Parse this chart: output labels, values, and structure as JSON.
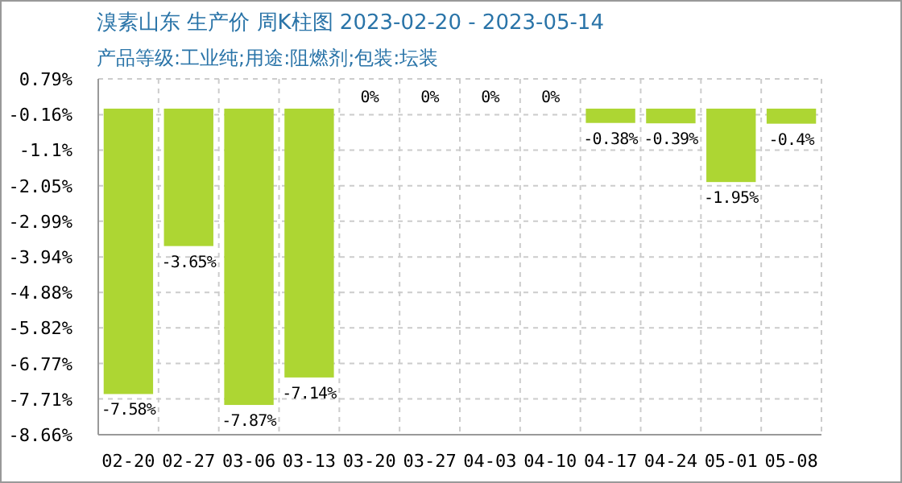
{
  "chart_data": {
    "type": "bar",
    "title": "溴素山东 生产价 周K柱图 2023-02-20 - 2023-05-14",
    "subtitle": "产品等级:工业纯;用途:阻燃剂;包装:坛装",
    "categories": [
      "02-20",
      "02-27",
      "03-06",
      "03-13",
      "03-20",
      "03-27",
      "04-03",
      "04-10",
      "04-17",
      "04-24",
      "05-01",
      "05-08"
    ],
    "values": [
      -7.58,
      -3.65,
      -7.87,
      -7.14,
      0,
      0,
      0,
      0,
      -0.38,
      -0.39,
      -1.95,
      -0.4
    ],
    "color": "#add633",
    "ylim": [
      -8.66,
      0.79
    ],
    "yticks": [
      {
        "value": 0.79,
        "label": "0.79%"
      },
      {
        "value": -0.16,
        "label": "-0.16%"
      },
      {
        "value": -1.1,
        "label": "-1.1%"
      },
      {
        "value": -2.05,
        "label": "-2.05%"
      },
      {
        "value": -2.99,
        "label": "-2.99%"
      },
      {
        "value": -3.94,
        "label": "-3.94%"
      },
      {
        "value": -4.88,
        "label": "-4.88%"
      },
      {
        "value": -5.82,
        "label": "-5.82%"
      },
      {
        "value": -6.77,
        "label": "-6.77%"
      },
      {
        "value": -7.71,
        "label": "-7.71%"
      },
      {
        "value": -8.66,
        "label": "-8.66%"
      }
    ],
    "value_labels": [
      "-7.58%",
      "-3.65%",
      "-7.87%",
      "-7.14%",
      "0%",
      "0%",
      "0%",
      "0%",
      "-0.38%",
      "-0.39%",
      "-1.95%",
      "-0.4%"
    ],
    "grid": true
  }
}
